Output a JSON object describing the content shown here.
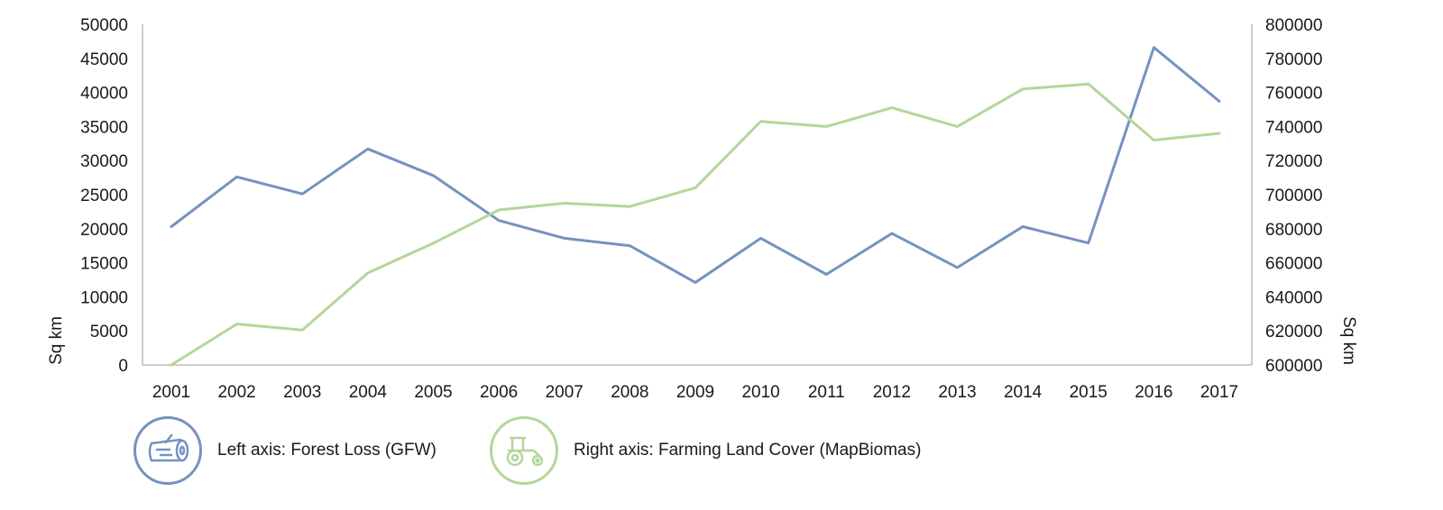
{
  "colors": {
    "forest_loss": "#7592c1",
    "farming": "#b3d69c",
    "axis": "#999999",
    "text": "#1a1a1a"
  },
  "legend": [
    {
      "label": "Left axis: Forest Loss (GFW)",
      "icon": "log-icon",
      "color": "#7592c1"
    },
    {
      "label": "Right axis: Farming Land Cover (MapBiomas)",
      "icon": "tractor-icon",
      "color": "#b3d69c"
    }
  ],
  "chart_data": {
    "type": "line",
    "title": "",
    "categories": [
      "2001",
      "2002",
      "2003",
      "2004",
      "2005",
      "2006",
      "2007",
      "2008",
      "2009",
      "2010",
      "2011",
      "2012",
      "2013",
      "2014",
      "2015",
      "2016",
      "2017"
    ],
    "ylabel_left": "Sq km",
    "ylabel_right": "Sq km",
    "ylim_left": [
      0,
      50000
    ],
    "ylim_right": [
      600000,
      800000
    ],
    "yticks_left": [
      "0",
      "5000",
      "10000",
      "15000",
      "20000",
      "25000",
      "30000",
      "35000",
      "40000",
      "45000",
      "50000"
    ],
    "yticks_right": [
      "600000",
      "620000",
      "640000",
      "660000",
      "680000",
      "700000",
      "720000",
      "740000",
      "760000",
      "780000",
      "800000"
    ],
    "grid": false,
    "legend_position": "bottom-left",
    "series": [
      {
        "name": "Left axis: Forest Loss (GFW)",
        "axis": "left",
        "color": "#7592c1",
        "values": [
          20300,
          27600,
          25100,
          31700,
          27800,
          21200,
          18600,
          17500,
          12100,
          18600,
          13300,
          19300,
          14300,
          20300,
          17900,
          46600,
          38700
        ]
      },
      {
        "name": "Right axis: Farming Land Cover (MapBiomas)",
        "axis": "right",
        "color": "#b3d69c",
        "values": [
          600000,
          624000,
          620500,
          654000,
          671500,
          691000,
          695000,
          693000,
          704000,
          743000,
          740000,
          751000,
          740000,
          762000,
          765000,
          732000,
          736000
        ]
      }
    ]
  }
}
